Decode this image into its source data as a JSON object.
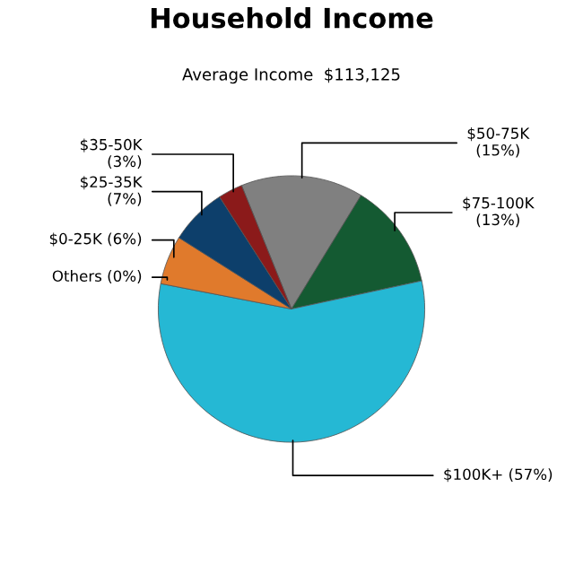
{
  "chart_data": {
    "type": "pie",
    "title": "Household Income",
    "subtitle": "Average Income  $113,125",
    "categories": [
      "$50-75K",
      "$75-100K",
      "$100K+",
      "Others",
      "$0-25K",
      "$25-35K",
      "$35-50K"
    ],
    "values": [
      15,
      13,
      57,
      0,
      6,
      7,
      3
    ],
    "value_labels": [
      "(15%)",
      "(13%)",
      "(57%)",
      "(0%)",
      "(6%)",
      "(7%)",
      "(3%)"
    ],
    "colors": [
      "#808080",
      "#145a32",
      "#25b8d4",
      "#d9d9d9",
      "#e07a2c",
      "#0d3f6b",
      "#8b1a1a"
    ]
  }
}
